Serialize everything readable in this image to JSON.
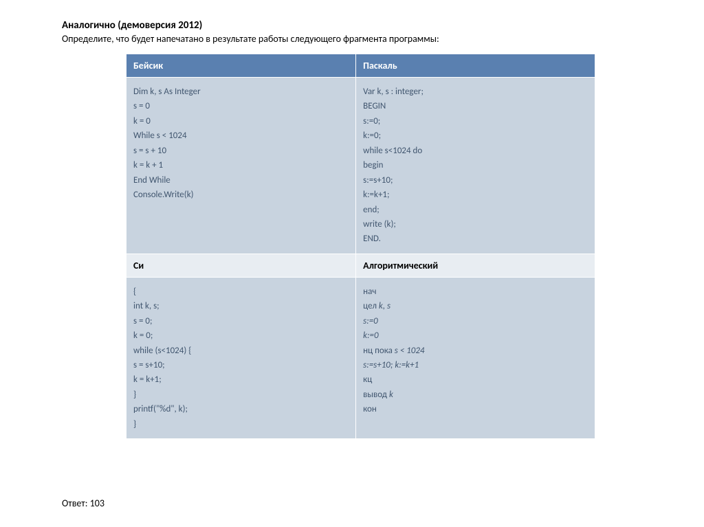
{
  "heading": "Аналогично (демоверсия 2012)",
  "subheading": "Определите, что будет напечатано в результате работы следующего фрагмента программы:",
  "table": {
    "header_bg": "#5a80b0",
    "header_fg": "#ffffff",
    "subheader_bg": "#e8edf2",
    "code_bg": "#c8d3df",
    "code_fg": "#41566f",
    "border_color": "#ffffff",
    "row1": {
      "left_label": "Бейсик",
      "right_label": "Паскаль",
      "left_code": "Dim k, s As Integer\ns = 0\nk = 0\nWhile s < 1024\ns = s + 10\nk = k + 1\nEnd While\nConsole.Write(k)",
      "right_code": "Var k, s : integer;\nBEGIN\ns:=0;\nk:=0;\nwhile s<1024 do\nbegin\ns:=s+10;\nk:=k+1;\nend;\nwrite (k);\nEND."
    },
    "row2": {
      "left_label": "Си",
      "right_label": "Алгоритмический",
      "left_code": "{\nint k, s;\ns = 0;\nk = 0;\nwhile (s<1024) {\ns = s+10;\nk = k+1;\n}\nprintf(\"%d\", k);\n}",
      "right_code_html": "нач\nцел <i>k, s</i>\n<i>s:=0</i>\n<i>k:=0</i>\nнц пока <i>s &lt; 1024</i>\n<i>s:=s+10;  k:=k+1</i>\nкц\nвывод <i>k</i>\nкон"
    }
  },
  "answer": "Ответ: 103"
}
